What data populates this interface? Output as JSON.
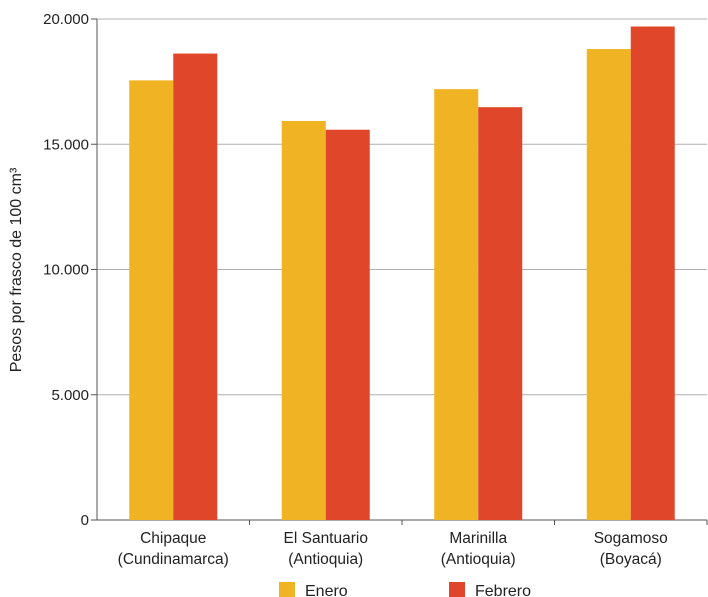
{
  "chart_data": {
    "type": "bar",
    "title": "",
    "xlabel": "",
    "ylabel": "Pesos por frasco de 100 cm³",
    "ylim": [
      0,
      20000
    ],
    "yticks": [
      {
        "value": 0,
        "label": "0"
      },
      {
        "value": 5000,
        "label": "5.000"
      },
      {
        "value": 10000,
        "label": "10.000"
      },
      {
        "value": 15000,
        "label": "15.000"
      },
      {
        "value": 20000,
        "label": "20.000"
      }
    ],
    "grid": true,
    "legend_position": "bottom",
    "categories": [
      [
        "Chipaque",
        "(Cundinamarca)"
      ],
      [
        "El Santuario",
        "(Antioquia)"
      ],
      [
        "Marinilla",
        "(Antioquia)"
      ],
      [
        "Sogamoso",
        "(Boyacá)"
      ]
    ],
    "series": [
      {
        "name": "Enero",
        "color": "#F0B323",
        "values": [
          17550,
          15930,
          17200,
          18800
        ]
      },
      {
        "name": "Febrero",
        "color": "#E0472A",
        "values": [
          18620,
          15580,
          16480,
          19700
        ]
      }
    ]
  }
}
